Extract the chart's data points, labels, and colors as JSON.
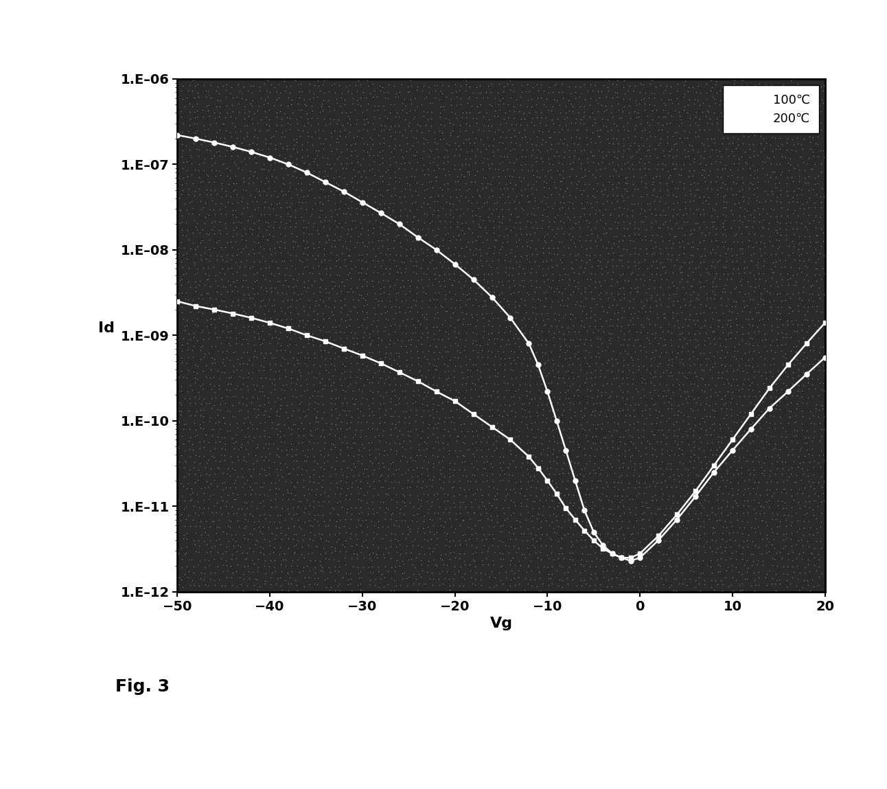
{
  "xlabel": "Vg",
  "ylabel": "Id",
  "xlim": [
    -50,
    20
  ],
  "ylim_log": [
    -12,
    -6
  ],
  "background_color": "#2a2a2a",
  "line_color": "#ffffff",
  "legend_100": "100℃",
  "legend_200": "200℃",
  "fig_label": "Fig. 3",
  "curve_100_x": [
    -50,
    -48,
    -46,
    -44,
    -42,
    -40,
    -38,
    -36,
    -34,
    -32,
    -30,
    -28,
    -26,
    -24,
    -22,
    -20,
    -18,
    -16,
    -14,
    -12,
    -11,
    -10,
    -9,
    -8,
    -7,
    -6,
    -5,
    -4,
    -3,
    -2,
    -1,
    0,
    2,
    4,
    6,
    8,
    10,
    12,
    14,
    16,
    18,
    20
  ],
  "curve_100_y": [
    2.2e-07,
    2e-07,
    1.8e-07,
    1.6e-07,
    1.4e-07,
    1.2e-07,
    1e-07,
    8e-08,
    6.2e-08,
    4.8e-08,
    3.6e-08,
    2.7e-08,
    2e-08,
    1.4e-08,
    1e-08,
    6.8e-09,
    4.5e-09,
    2.8e-09,
    1.6e-09,
    8e-10,
    4.5e-10,
    2.2e-10,
    1e-10,
    4.5e-11,
    2e-11,
    9e-12,
    5e-12,
    3.5e-12,
    2.8e-12,
    2.5e-12,
    2.3e-12,
    2.5e-12,
    4e-12,
    7e-12,
    1.3e-11,
    2.5e-11,
    4.5e-11,
    8e-11,
    1.4e-10,
    2.2e-10,
    3.5e-10,
    5.5e-10
  ],
  "curve_200_x": [
    -50,
    -48,
    -46,
    -44,
    -42,
    -40,
    -38,
    -36,
    -34,
    -32,
    -30,
    -28,
    -26,
    -24,
    -22,
    -20,
    -18,
    -16,
    -14,
    -12,
    -11,
    -10,
    -9,
    -8,
    -7,
    -6,
    -5,
    -4,
    -3,
    -2,
    -1,
    0,
    2,
    4,
    6,
    8,
    10,
    12,
    14,
    16,
    18,
    20
  ],
  "curve_200_y": [
    2.5e-09,
    2.2e-09,
    2e-09,
    1.8e-09,
    1.6e-09,
    1.4e-09,
    1.2e-09,
    1e-09,
    8.5e-10,
    7e-10,
    5.8e-10,
    4.7e-10,
    3.7e-10,
    2.9e-10,
    2.2e-10,
    1.7e-10,
    1.2e-10,
    8.5e-11,
    6e-11,
    3.8e-11,
    2.8e-11,
    2e-11,
    1.4e-11,
    9.5e-12,
    7e-12,
    5.2e-12,
    4e-12,
    3.2e-12,
    2.8e-12,
    2.5e-12,
    2.5e-12,
    2.8e-12,
    4.5e-12,
    8e-12,
    1.5e-11,
    3e-11,
    6e-11,
    1.2e-10,
    2.4e-10,
    4.5e-10,
    8e-10,
    1.4e-09
  ]
}
